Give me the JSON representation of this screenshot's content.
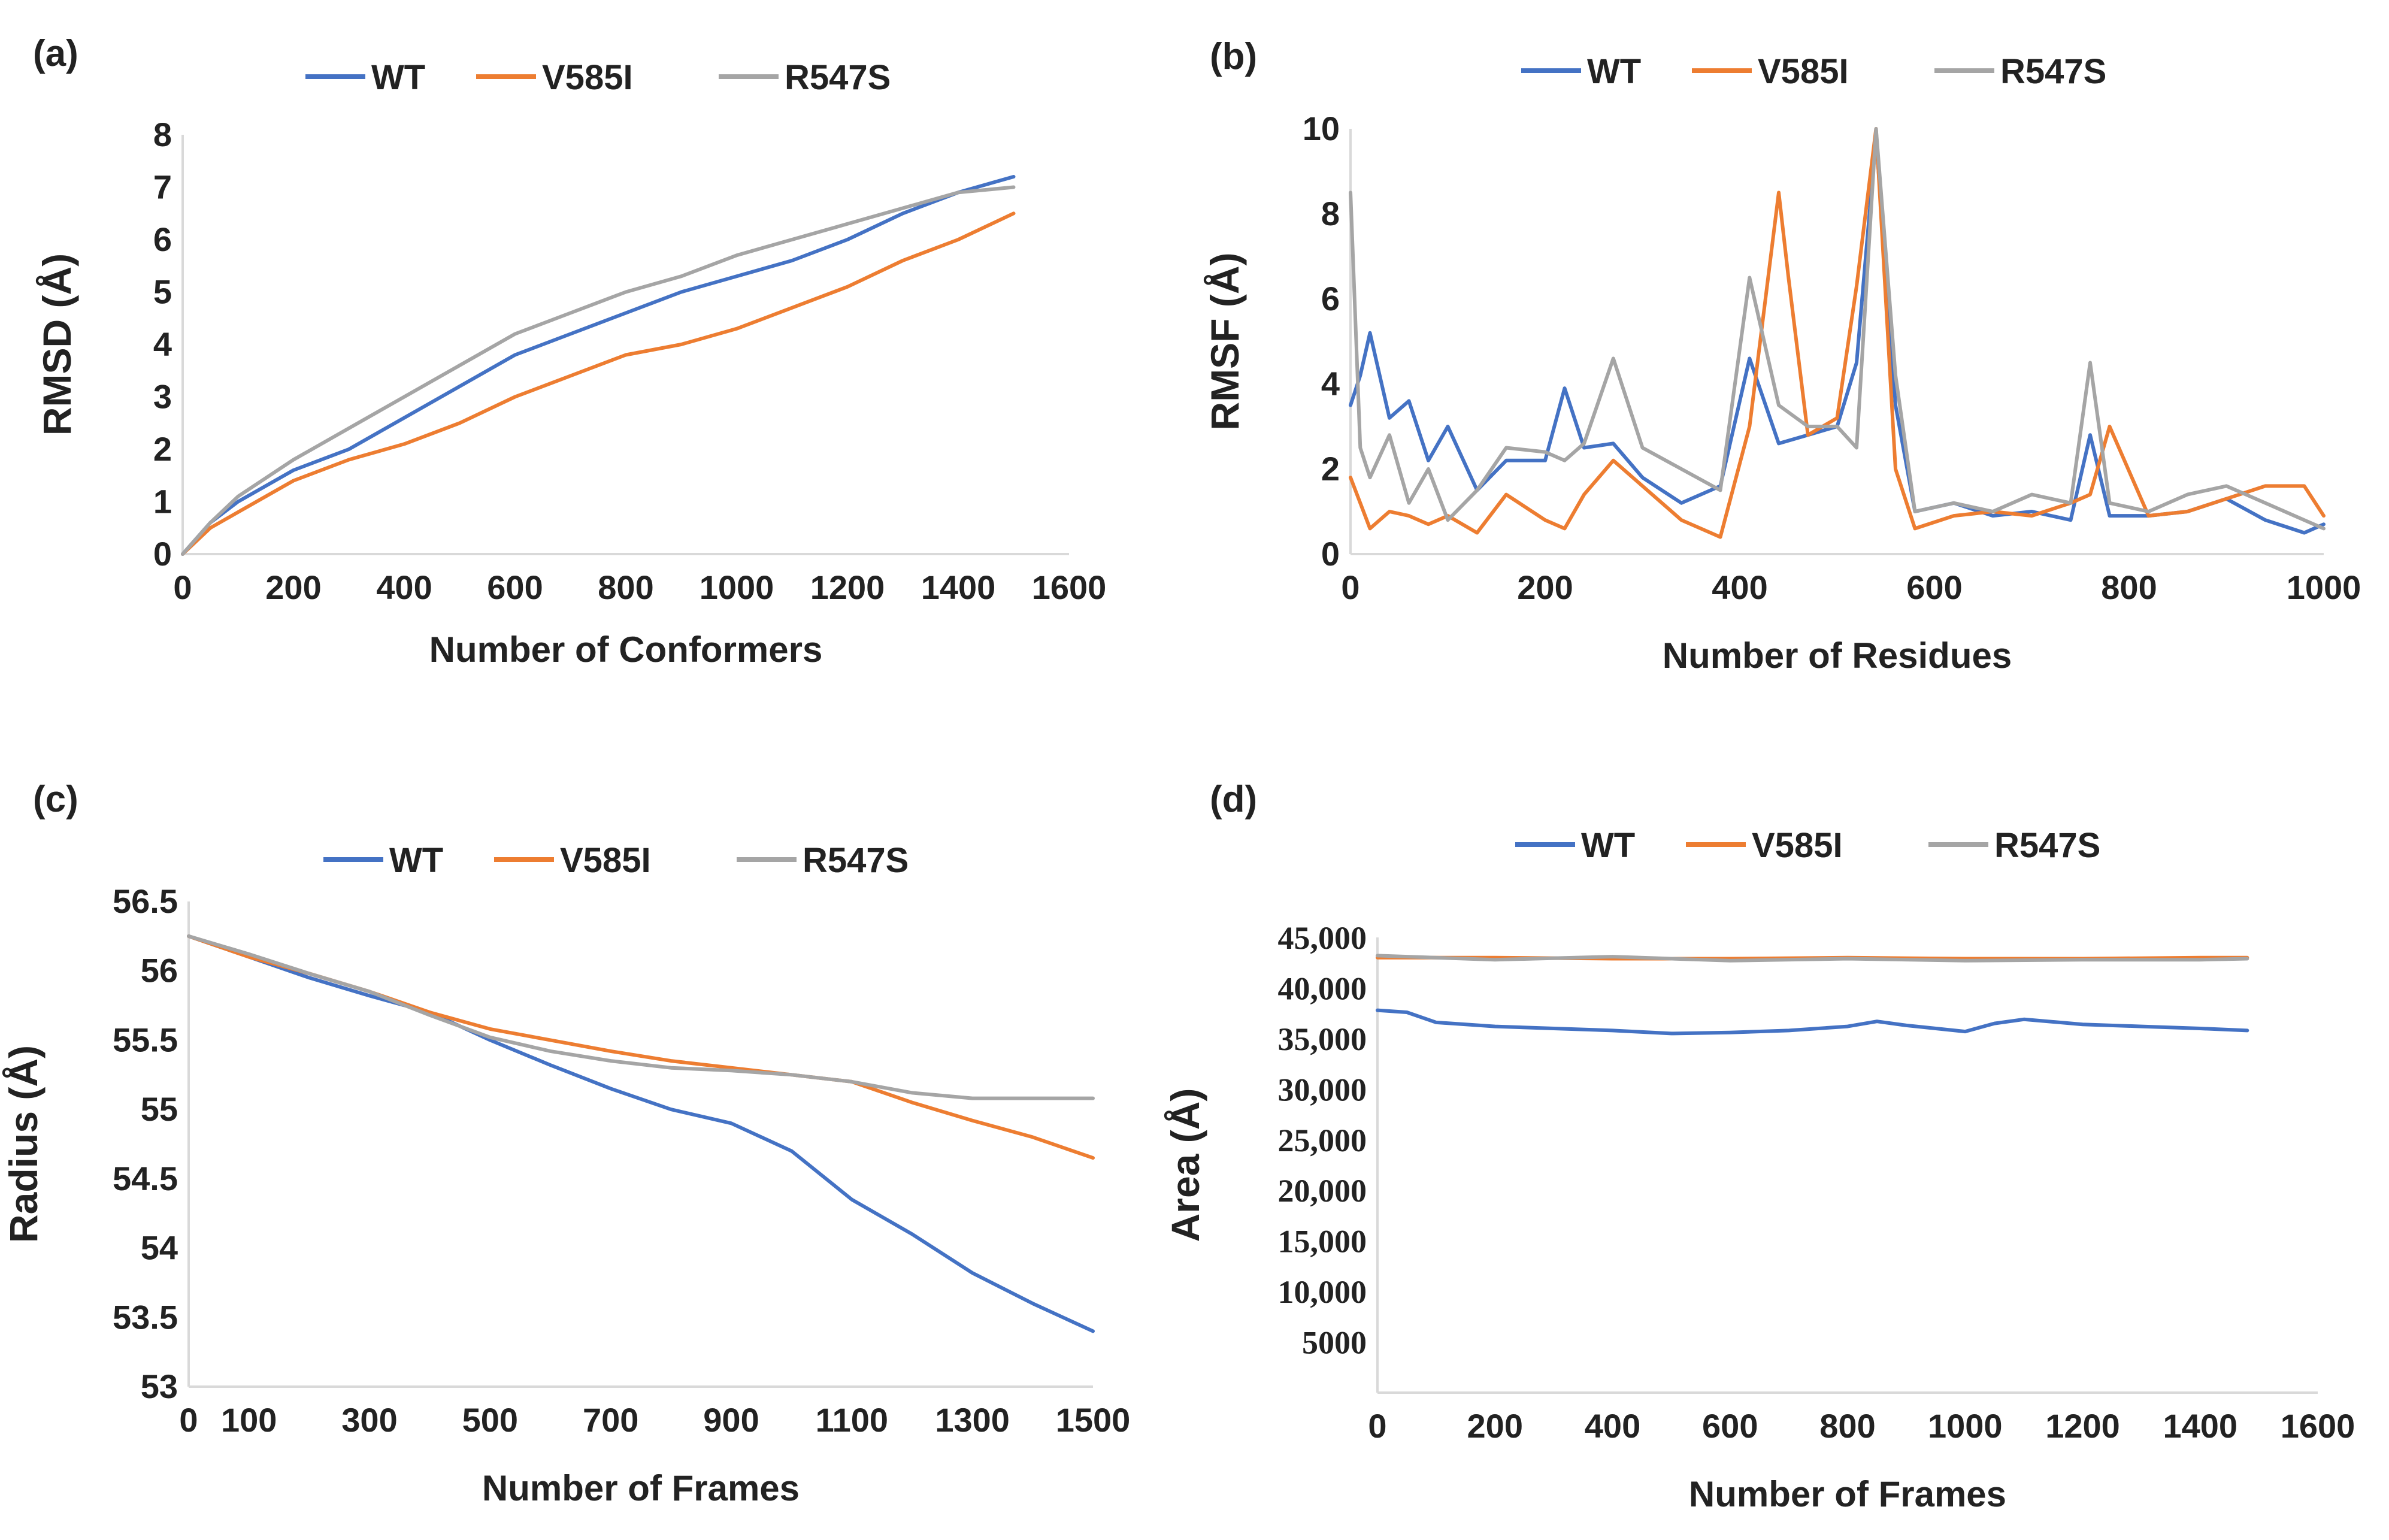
{
  "colors": {
    "WT": "#4472c4",
    "V585I": "#ed7d31",
    "R547S": "#a5a5a5",
    "axis": "#d9d9d9",
    "text": "#222222"
  },
  "chart_data": [
    {
      "panel": "(a)",
      "type": "line",
      "xlabel": "Number of Conformers",
      "ylabel": "RMSD (Å)",
      "xlim": [
        0,
        1600
      ],
      "ylim": [
        0,
        8
      ],
      "xticks": [
        0,
        200,
        400,
        600,
        800,
        1000,
        1200,
        1400,
        1600
      ],
      "yticks": [
        0,
        1,
        2,
        3,
        4,
        5,
        6,
        7,
        8
      ],
      "legend": [
        "WT",
        "V585I",
        "R547S"
      ],
      "series": [
        {
          "name": "WT",
          "x": [
            0,
            50,
            100,
            200,
            300,
            400,
            500,
            600,
            700,
            800,
            900,
            1000,
            1100,
            1200,
            1300,
            1400,
            1500
          ],
          "y": [
            0,
            0.6,
            1.0,
            1.6,
            2.0,
            2.6,
            3.2,
            3.8,
            4.2,
            4.6,
            5.0,
            5.3,
            5.6,
            6.0,
            6.5,
            6.9,
            7.2
          ]
        },
        {
          "name": "V585I",
          "x": [
            0,
            50,
            100,
            200,
            300,
            400,
            500,
            600,
            700,
            800,
            900,
            1000,
            1100,
            1200,
            1300,
            1400,
            1500
          ],
          "y": [
            0,
            0.5,
            0.8,
            1.4,
            1.8,
            2.1,
            2.5,
            3.0,
            3.4,
            3.8,
            4.0,
            4.3,
            4.7,
            5.1,
            5.6,
            6.0,
            6.5
          ]
        },
        {
          "name": "R547S",
          "x": [
            0,
            50,
            100,
            200,
            300,
            400,
            500,
            600,
            700,
            800,
            900,
            1000,
            1100,
            1200,
            1300,
            1400,
            1500
          ],
          "y": [
            0,
            0.6,
            1.1,
            1.8,
            2.4,
            3.0,
            3.6,
            4.2,
            4.6,
            5.0,
            5.3,
            5.7,
            6.0,
            6.3,
            6.6,
            6.9,
            7.0
          ]
        }
      ]
    },
    {
      "panel": "(b)",
      "type": "line",
      "xlabel": "Number of Residues",
      "ylabel": "RMSF (Å)",
      "xlim": [
        0,
        1000
      ],
      "ylim": [
        0,
        10
      ],
      "xticks": [
        0,
        200,
        400,
        600,
        800,
        1000
      ],
      "yticks": [
        0,
        2,
        4,
        6,
        8,
        10
      ],
      "legend": [
        "WT",
        "V585I",
        "R547S"
      ],
      "series": [
        {
          "name": "WT",
          "x": [
            0,
            10,
            20,
            40,
            60,
            80,
            100,
            130,
            160,
            200,
            220,
            240,
            270,
            300,
            340,
            380,
            410,
            440,
            470,
            500,
            520,
            540,
            560,
            580,
            620,
            660,
            700,
            740,
            760,
            780,
            820,
            860,
            900,
            940,
            980,
            1000
          ],
          "y": [
            3.5,
            4.2,
            5.2,
            3.2,
            3.6,
            2.2,
            3.0,
            1.5,
            2.2,
            2.2,
            3.9,
            2.5,
            2.6,
            1.8,
            1.2,
            1.6,
            4.6,
            2.6,
            2.8,
            3.0,
            4.5,
            9.8,
            3.5,
            1.0,
            1.2,
            0.9,
            1.0,
            0.8,
            2.8,
            0.9,
            0.9,
            1.0,
            1.3,
            0.8,
            0.5,
            0.7
          ]
        },
        {
          "name": "V585I",
          "x": [
            0,
            10,
            20,
            40,
            60,
            80,
            100,
            130,
            160,
            200,
            220,
            240,
            270,
            300,
            340,
            380,
            410,
            440,
            450,
            470,
            500,
            520,
            540,
            560,
            580,
            620,
            660,
            700,
            740,
            760,
            780,
            820,
            860,
            900,
            940,
            980,
            1000
          ],
          "y": [
            1.8,
            1.2,
            0.6,
            1.0,
            0.9,
            0.7,
            0.9,
            0.5,
            1.4,
            0.8,
            0.6,
            1.4,
            2.2,
            1.6,
            0.8,
            0.4,
            3.0,
            8.5,
            6.5,
            2.8,
            3.2,
            6.3,
            10.0,
            2.0,
            0.6,
            0.9,
            1.0,
            0.9,
            1.2,
            1.4,
            3.0,
            0.9,
            1.0,
            1.3,
            1.6,
            1.6,
            0.9
          ]
        },
        {
          "name": "R547S",
          "x": [
            0,
            10,
            20,
            40,
            60,
            80,
            100,
            130,
            160,
            200,
            220,
            240,
            270,
            300,
            340,
            380,
            410,
            440,
            470,
            500,
            520,
            540,
            560,
            580,
            620,
            660,
            700,
            740,
            760,
            780,
            820,
            860,
            900,
            940,
            980,
            1000
          ],
          "y": [
            8.5,
            2.5,
            1.8,
            2.8,
            1.2,
            2.0,
            0.8,
            1.5,
            2.5,
            2.4,
            2.2,
            2.6,
            4.6,
            2.5,
            2.0,
            1.5,
            6.5,
            3.5,
            3.0,
            3.0,
            2.5,
            10.0,
            4.2,
            1.0,
            1.2,
            1.0,
            1.4,
            1.2,
            4.5,
            1.2,
            1.0,
            1.4,
            1.6,
            1.2,
            0.8,
            0.6
          ]
        }
      ]
    },
    {
      "panel": "(c)",
      "type": "line",
      "xlabel": "Number of Frames",
      "ylabel": "Radius (Å)",
      "xlim": [
        0,
        1500
      ],
      "ylim": [
        53,
        56.5
      ],
      "xticks": [
        0,
        100,
        300,
        500,
        700,
        900,
        1100,
        1300,
        1500
      ],
      "yticks": [
        53,
        53.5,
        54,
        54.5,
        55,
        55.5,
        56,
        56.5
      ],
      "legend": [
        "WT",
        "V585I",
        "R547S"
      ],
      "series": [
        {
          "name": "WT",
          "x": [
            0,
            100,
            200,
            300,
            400,
            500,
            600,
            700,
            800,
            900,
            1000,
            1100,
            1200,
            1300,
            1400,
            1500
          ],
          "y": [
            56.25,
            56.1,
            55.95,
            55.82,
            55.7,
            55.5,
            55.32,
            55.15,
            55.0,
            54.9,
            54.7,
            54.35,
            54.1,
            53.82,
            53.6,
            53.4
          ]
        },
        {
          "name": "V585I",
          "x": [
            0,
            100,
            200,
            300,
            400,
            500,
            600,
            700,
            800,
            900,
            1000,
            1100,
            1200,
            1300,
            1400,
            1500
          ],
          "y": [
            56.25,
            56.1,
            55.98,
            55.85,
            55.7,
            55.58,
            55.5,
            55.42,
            55.35,
            55.3,
            55.25,
            55.2,
            55.05,
            54.92,
            54.8,
            54.65
          ]
        },
        {
          "name": "R547S",
          "x": [
            0,
            100,
            200,
            300,
            400,
            500,
            600,
            700,
            800,
            900,
            1000,
            1100,
            1200,
            1300,
            1400,
            1500
          ],
          "y": [
            56.25,
            56.12,
            55.98,
            55.85,
            55.68,
            55.52,
            55.42,
            55.35,
            55.3,
            55.28,
            55.25,
            55.2,
            55.12,
            55.08,
            55.08,
            55.08
          ]
        }
      ]
    },
    {
      "panel": "(d)",
      "type": "line",
      "xlabel": "Number of Frames",
      "ylabel": "Area (Å)",
      "xlim": [
        0,
        1600
      ],
      "ylim": [
        0,
        45000
      ],
      "xticks": [
        0,
        200,
        400,
        600,
        800,
        1000,
        1200,
        1400,
        1600
      ],
      "yticks": [
        5000,
        10000,
        15000,
        20000,
        25000,
        30000,
        35000,
        40000,
        45000
      ],
      "ytick_labels": [
        "5000",
        "10,000",
        "15,000",
        "20,000",
        "25,000",
        "30,000",
        "35,000",
        "40,000",
        "45,000"
      ],
      "legend": [
        "WT",
        "V585I",
        "R547S"
      ],
      "series": [
        {
          "name": "WT",
          "x": [
            0,
            50,
            100,
            200,
            300,
            400,
            500,
            600,
            700,
            800,
            850,
            900,
            1000,
            1050,
            1100,
            1200,
            1300,
            1400,
            1480
          ],
          "y": [
            37800,
            37600,
            36600,
            36200,
            36000,
            35800,
            35500,
            35600,
            35800,
            36200,
            36700,
            36300,
            35700,
            36500,
            36900,
            36400,
            36200,
            36000,
            35800
          ]
        },
        {
          "name": "V585I",
          "x": [
            0,
            200,
            400,
            600,
            800,
            1000,
            1200,
            1400,
            1480
          ],
          "y": [
            43000,
            43000,
            42900,
            42900,
            43000,
            42900,
            42900,
            43000,
            43000
          ]
        },
        {
          "name": "R547S",
          "x": [
            0,
            200,
            400,
            600,
            800,
            1000,
            1200,
            1400,
            1480
          ],
          "y": [
            43200,
            42800,
            43100,
            42700,
            42900,
            42700,
            42800,
            42800,
            42900
          ]
        }
      ]
    }
  ]
}
